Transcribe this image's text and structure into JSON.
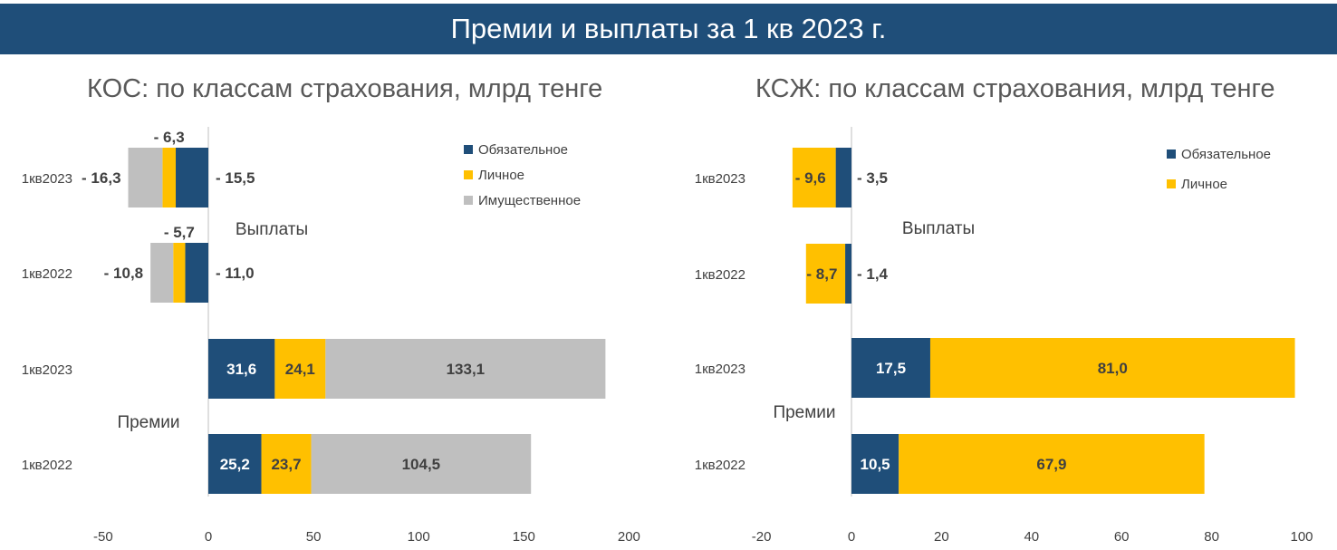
{
  "title": "Премии и выплаты за 1 кв 2023 г.",
  "chart_data": [
    {
      "type": "bar",
      "orientation": "horizontal",
      "stacked": true,
      "title": "КОС: по классам страхования, млрд тенге",
      "groups": [
        "Выплаты",
        "Премии"
      ],
      "categories": [
        "1кв2023",
        "1кв2022",
        "1кв2023",
        "1кв2022"
      ],
      "category_groups": [
        "Выплаты",
        "Выплаты",
        "Премии",
        "Премии"
      ],
      "series": [
        {
          "name": "Обязательное",
          "color": "#1f4e79",
          "values": [
            -15.5,
            -11.0,
            31.6,
            25.2
          ],
          "labels": [
            "- 15,5",
            "- 11,0",
            "31,6",
            "25,2"
          ]
        },
        {
          "name": "Личное",
          "color": "#ffc000",
          "values": [
            -6.3,
            -5.7,
            24.1,
            23.7
          ],
          "labels": [
            "- 6,3",
            "- 5,7",
            "24,1",
            "23,7"
          ]
        },
        {
          "name": "Имущественное",
          "color": "#bfbfbf",
          "values": [
            -16.3,
            -10.8,
            133.1,
            104.5
          ],
          "labels": [
            "- 16,3",
            "- 10,8",
            "133,1",
            "104,5"
          ]
        }
      ],
      "xlim": [
        -50,
        200
      ],
      "xticks": [
        "-50",
        "0",
        "50",
        "100",
        "150",
        "200"
      ],
      "grid": false,
      "legend_position": "top-right"
    },
    {
      "type": "bar",
      "orientation": "horizontal",
      "stacked": true,
      "title": "КСЖ: по классам страхования, млрд тенге",
      "groups": [
        "Выплаты",
        "Премии"
      ],
      "categories": [
        "1кв2023",
        "1кв2022",
        "1кв2023",
        "1кв2022"
      ],
      "category_groups": [
        "Выплаты",
        "Выплаты",
        "Премии",
        "Премии"
      ],
      "series": [
        {
          "name": "Обязательное",
          "color": "#1f4e79",
          "values": [
            -3.5,
            -1.4,
            17.5,
            10.5
          ],
          "labels": [
            "- 3,5",
            "- 1,4",
            "17,5",
            "10,5"
          ]
        },
        {
          "name": "Личное",
          "color": "#ffc000",
          "values": [
            -9.6,
            -8.7,
            81.0,
            67.9
          ],
          "labels": [
            "- 9,6",
            "- 8,7",
            "81,0",
            "67,9"
          ]
        }
      ],
      "xlim": [
        -20,
        100
      ],
      "xticks": [
        "-20",
        "0",
        "20",
        "40",
        "60",
        "80",
        "100"
      ],
      "grid": false,
      "legend_position": "top-right"
    }
  ]
}
